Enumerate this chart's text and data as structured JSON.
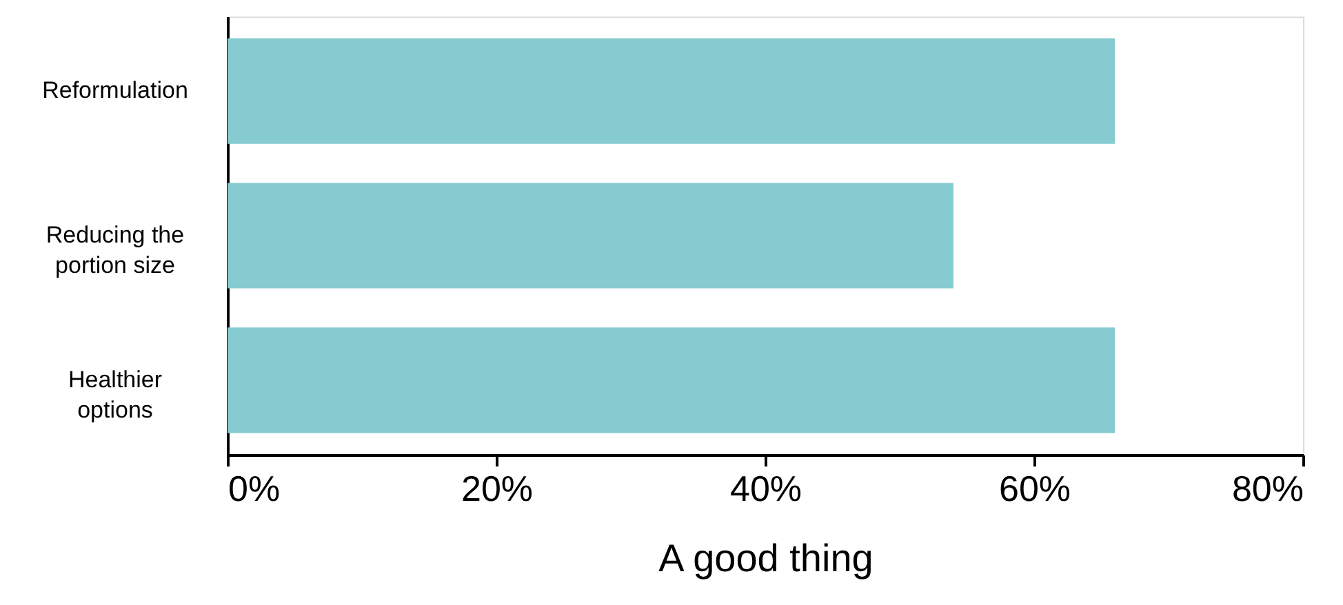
{
  "chart_data": {
    "type": "bar",
    "orientation": "horizontal",
    "categories": [
      "Reformulation",
      "Reducing the portion size",
      "Healthier options"
    ],
    "values": [
      66,
      54,
      66
    ],
    "color": "#86cbd0",
    "xlabel": "A good thing",
    "xlim": [
      0,
      80
    ],
    "xticks": [
      {
        "value": 0,
        "label": "0%"
      },
      {
        "value": 20,
        "label": "20%"
      },
      {
        "value": 40,
        "label": "40%"
      },
      {
        "value": 60,
        "label": "60%"
      },
      {
        "value": 80,
        "label": "80%"
      }
    ],
    "grid": false
  }
}
